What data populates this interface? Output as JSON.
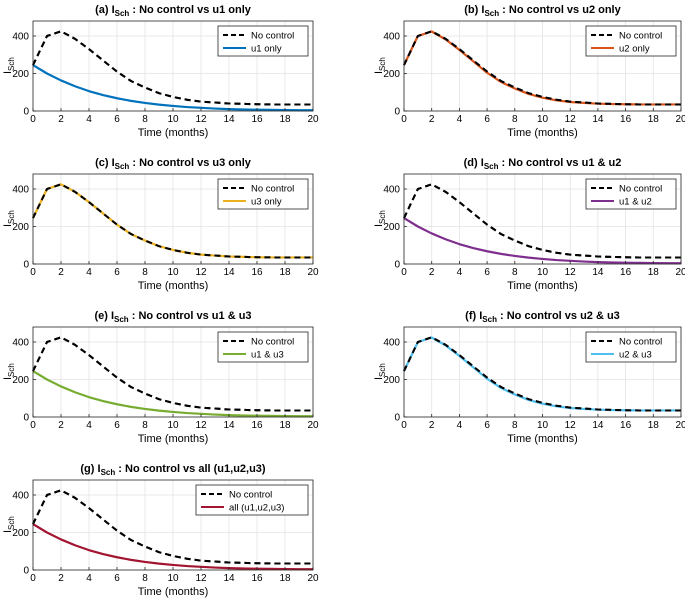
{
  "chart_data": [
    {
      "type": "line",
      "title": {
        "prefix": "(a) I",
        "sub": "Sch",
        "suffix": " : No control vs u1 only"
      },
      "xlabel": "Time (months)",
      "ylabel": {
        "main": "I",
        "sub": "Sch"
      },
      "xlim": [
        0,
        20
      ],
      "ylim": [
        0,
        480
      ],
      "xticks": [
        0,
        2,
        4,
        6,
        8,
        10,
        12,
        14,
        16,
        18,
        20
      ],
      "yticks": [
        0,
        200,
        400
      ],
      "x": [
        0,
        1,
        2,
        3,
        4,
        5,
        6,
        7,
        8,
        9,
        10,
        11,
        12,
        13,
        14,
        15,
        16,
        17,
        18,
        19,
        20
      ],
      "series": [
        {
          "name": "No control",
          "style": "dashed",
          "color": "#000000",
          "values": [
            245,
            400,
            425,
            385,
            330,
            270,
            210,
            160,
            125,
            95,
            75,
            60,
            50,
            45,
            40,
            38,
            36,
            35,
            35,
            35,
            35
          ]
        },
        {
          "name": "u1 only",
          "style": "solid",
          "color": "#0072BD",
          "values": [
            245,
            200,
            163,
            132,
            106,
            85,
            68,
            54,
            43,
            34,
            27,
            21,
            17,
            13,
            10,
            8,
            7,
            6,
            5,
            4,
            4
          ]
        }
      ]
    },
    {
      "type": "line",
      "title": {
        "prefix": "(b) I",
        "sub": "Sch",
        "suffix": " : No control vs u2 only"
      },
      "xlabel": "Time (months)",
      "ylabel": {
        "main": "I",
        "sub": "Sch"
      },
      "xlim": [
        0,
        20
      ],
      "ylim": [
        0,
        480
      ],
      "xticks": [
        0,
        2,
        4,
        6,
        8,
        10,
        12,
        14,
        16,
        18,
        20
      ],
      "yticks": [
        0,
        200,
        400
      ],
      "x": [
        0,
        1,
        2,
        3,
        4,
        5,
        6,
        7,
        8,
        9,
        10,
        11,
        12,
        13,
        14,
        15,
        16,
        17,
        18,
        19,
        20
      ],
      "series": [
        {
          "name": "No control",
          "style": "dashed",
          "color": "#000000",
          "values": [
            245,
            400,
            425,
            385,
            330,
            270,
            210,
            160,
            125,
            95,
            75,
            60,
            50,
            45,
            40,
            38,
            36,
            35,
            35,
            35,
            35
          ]
        },
        {
          "name": "u2 only",
          "style": "solid",
          "color": "#D95319",
          "values": [
            245,
            400,
            424,
            382,
            326,
            265,
            204,
            155,
            120,
            91,
            71,
            57,
            48,
            43,
            39,
            37,
            36,
            35,
            35,
            35,
            35
          ]
        }
      ]
    },
    {
      "type": "line",
      "title": {
        "prefix": "(c) I",
        "sub": "Sch",
        "suffix": " : No control vs u3 only"
      },
      "xlabel": "Time (months)",
      "ylabel": {
        "main": "I",
        "sub": "Sch"
      },
      "xlim": [
        0,
        20
      ],
      "ylim": [
        0,
        480
      ],
      "xticks": [
        0,
        2,
        4,
        6,
        8,
        10,
        12,
        14,
        16,
        18,
        20
      ],
      "yticks": [
        0,
        200,
        400
      ],
      "x": [
        0,
        1,
        2,
        3,
        4,
        5,
        6,
        7,
        8,
        9,
        10,
        11,
        12,
        13,
        14,
        15,
        16,
        17,
        18,
        19,
        20
      ],
      "series": [
        {
          "name": "No control",
          "style": "dashed",
          "color": "#000000",
          "values": [
            245,
            400,
            425,
            385,
            330,
            270,
            210,
            160,
            125,
            95,
            75,
            60,
            50,
            45,
            40,
            38,
            36,
            35,
            35,
            35,
            35
          ]
        },
        {
          "name": "u3 only",
          "style": "solid",
          "color": "#EDB120",
          "values": [
            245,
            400,
            425,
            385,
            330,
            270,
            210,
            160,
            125,
            95,
            75,
            60,
            50,
            45,
            40,
            38,
            36,
            35,
            35,
            35,
            35
          ]
        }
      ]
    },
    {
      "type": "line",
      "title": {
        "prefix": "(d) I",
        "sub": "Sch",
        "suffix": " : No control vs u1 & u2"
      },
      "xlabel": "Time (months)",
      "ylabel": {
        "main": "I",
        "sub": "Sch"
      },
      "xlim": [
        0,
        20
      ],
      "ylim": [
        0,
        480
      ],
      "xticks": [
        0,
        2,
        4,
        6,
        8,
        10,
        12,
        14,
        16,
        18,
        20
      ],
      "yticks": [
        0,
        200,
        400
      ],
      "x": [
        0,
        1,
        2,
        3,
        4,
        5,
        6,
        7,
        8,
        9,
        10,
        11,
        12,
        13,
        14,
        15,
        16,
        17,
        18,
        19,
        20
      ],
      "series": [
        {
          "name": "No control",
          "style": "dashed",
          "color": "#000000",
          "values": [
            245,
            400,
            425,
            385,
            330,
            270,
            210,
            160,
            125,
            95,
            75,
            60,
            50,
            45,
            40,
            38,
            36,
            35,
            35,
            35,
            35
          ]
        },
        {
          "name": "u1 & u2",
          "style": "solid",
          "color": "#7E2F8E",
          "values": [
            245,
            200,
            163,
            132,
            106,
            85,
            68,
            54,
            43,
            34,
            27,
            21,
            17,
            13,
            10,
            8,
            7,
            6,
            5,
            4,
            4
          ]
        }
      ]
    },
    {
      "type": "line",
      "title": {
        "prefix": "(e) I",
        "sub": "Sch",
        "suffix": " : No control vs u1 & u3"
      },
      "xlabel": "Time (months)",
      "ylabel": {
        "main": "I",
        "sub": "Sch"
      },
      "xlim": [
        0,
        20
      ],
      "ylim": [
        0,
        480
      ],
      "xticks": [
        0,
        2,
        4,
        6,
        8,
        10,
        12,
        14,
        16,
        18,
        20
      ],
      "yticks": [
        0,
        200,
        400
      ],
      "x": [
        0,
        1,
        2,
        3,
        4,
        5,
        6,
        7,
        8,
        9,
        10,
        11,
        12,
        13,
        14,
        15,
        16,
        17,
        18,
        19,
        20
      ],
      "series": [
        {
          "name": "No control",
          "style": "dashed",
          "color": "#000000",
          "values": [
            245,
            400,
            425,
            385,
            330,
            270,
            210,
            160,
            125,
            95,
            75,
            60,
            50,
            45,
            40,
            38,
            36,
            35,
            35,
            35,
            35
          ]
        },
        {
          "name": "u1 & u3",
          "style": "solid",
          "color": "#77AC30",
          "values": [
            245,
            200,
            163,
            132,
            106,
            85,
            68,
            54,
            43,
            34,
            27,
            21,
            17,
            13,
            10,
            8,
            7,
            6,
            5,
            4,
            4
          ]
        }
      ]
    },
    {
      "type": "line",
      "title": {
        "prefix": "(f) I",
        "sub": "Sch",
        "suffix": " : No control vs u2 & u3"
      },
      "xlabel": "Time (months)",
      "ylabel": {
        "main": "I",
        "sub": "Sch"
      },
      "xlim": [
        0,
        20
      ],
      "ylim": [
        0,
        480
      ],
      "xticks": [
        0,
        2,
        4,
        6,
        8,
        10,
        12,
        14,
        16,
        18,
        20
      ],
      "yticks": [
        0,
        200,
        400
      ],
      "x": [
        0,
        1,
        2,
        3,
        4,
        5,
        6,
        7,
        8,
        9,
        10,
        11,
        12,
        13,
        14,
        15,
        16,
        17,
        18,
        19,
        20
      ],
      "series": [
        {
          "name": "No control",
          "style": "dashed",
          "color": "#000000",
          "values": [
            245,
            400,
            425,
            385,
            330,
            270,
            210,
            160,
            125,
            95,
            75,
            60,
            50,
            45,
            40,
            38,
            36,
            35,
            35,
            35,
            35
          ]
        },
        {
          "name": "u2 & u3",
          "style": "solid",
          "color": "#4DBEEE",
          "values": [
            245,
            400,
            424,
            382,
            326,
            265,
            204,
            155,
            120,
            91,
            71,
            57,
            48,
            43,
            39,
            37,
            36,
            35,
            35,
            35,
            35
          ]
        }
      ]
    },
    {
      "type": "line",
      "title": {
        "prefix": "(g) I",
        "sub": "Sch",
        "suffix": " : No control vs all (u1,u2,u3)"
      },
      "xlabel": "Time (months)",
      "ylabel": {
        "main": "I",
        "sub": "Sch"
      },
      "xlim": [
        0,
        20
      ],
      "ylim": [
        0,
        480
      ],
      "xticks": [
        0,
        2,
        4,
        6,
        8,
        10,
        12,
        14,
        16,
        18,
        20
      ],
      "yticks": [
        0,
        200,
        400
      ],
      "x": [
        0,
        1,
        2,
        3,
        4,
        5,
        6,
        7,
        8,
        9,
        10,
        11,
        12,
        13,
        14,
        15,
        16,
        17,
        18,
        19,
        20
      ],
      "series": [
        {
          "name": "No control",
          "style": "dashed",
          "color": "#000000",
          "values": [
            245,
            400,
            425,
            385,
            330,
            270,
            210,
            160,
            125,
            95,
            75,
            60,
            50,
            45,
            40,
            38,
            36,
            35,
            35,
            35,
            35
          ]
        },
        {
          "name": "all (u1,u2,u3)",
          "style": "solid",
          "color": "#A2142F",
          "values": [
            245,
            200,
            163,
            132,
            106,
            85,
            68,
            54,
            43,
            34,
            27,
            21,
            17,
            13,
            10,
            8,
            7,
            6,
            5,
            4,
            4
          ]
        }
      ]
    }
  ]
}
